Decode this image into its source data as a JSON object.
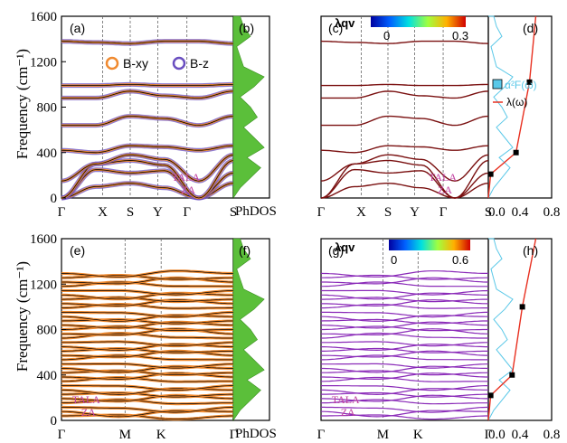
{
  "chart_data": [
    {
      "id": "a",
      "type": "line",
      "panel_label": "(a)",
      "ylabel": "Frequency (cm⁻¹)",
      "ylim": [
        0,
        1600
      ],
      "yticks": [
        "0",
        "400",
        "800",
        "1200",
        "1600"
      ],
      "kpath": [
        "Γ",
        "X",
        "S",
        "Y",
        "Γ",
        "S"
      ],
      "legend": [
        {
          "name": "B-xy",
          "color": "#f08a30"
        },
        {
          "name": "B-z",
          "color": "#6a4fc0"
        }
      ],
      "mode_labels": [
        "TA",
        "LA",
        "ZA"
      ],
      "bands_at_high_symmetry": [
        [
          0,
          100,
          130,
          90,
          0,
          130
        ],
        [
          0,
          250,
          220,
          240,
          0,
          220
        ],
        [
          0,
          300,
          330,
          290,
          0,
          330
        ],
        [
          150,
          300,
          380,
          340,
          150,
          380
        ],
        [
          420,
          400,
          460,
          450,
          420,
          460
        ],
        [
          640,
          640,
          720,
          700,
          640,
          720
        ],
        [
          880,
          880,
          940,
          900,
          880,
          940
        ],
        [
          990,
          990,
          1000,
          990,
          990,
          1000
        ],
        [
          1380,
          1370,
          1360,
          1380,
          1380,
          1360
        ]
      ]
    },
    {
      "id": "b",
      "type": "area",
      "panel_label": "(b)",
      "xlabel": "PhDOS",
      "phdos": [
        0,
        0.2,
        0.5,
        0.8,
        0.4,
        0.9,
        0.6,
        0.3,
        0.7,
        0.5,
        0.2,
        0.6,
        0.9,
        0.3,
        0.2,
        0.1,
        0.5,
        0.3,
        0.2
      ]
    },
    {
      "id": "c",
      "type": "line",
      "panel_label": "(c)",
      "ylim": [
        0,
        1600
      ],
      "kpath": [
        "Γ",
        "X",
        "S",
        "Y",
        "Γ",
        "S"
      ],
      "colorbar": {
        "label": "λqv",
        "min": "0",
        "max": "0.3"
      },
      "mode_labels": [
        "TA",
        "LA",
        "ZA"
      ]
    },
    {
      "id": "d",
      "type": "line",
      "panel_label": "(d)",
      "xlim": [
        0,
        0.8
      ],
      "xticks": [
        "0.0",
        "0.4",
        "0.8"
      ],
      "legend": [
        "α²F(ω)",
        "λ(ω)"
      ],
      "lambda_markers": [
        [
          0.03,
          210
        ],
        [
          0.35,
          400
        ],
        [
          0.52,
          1020
        ]
      ]
    },
    {
      "id": "e",
      "type": "line",
      "panel_label": "(e)",
      "ylabel": "Frequency (cm⁻¹)",
      "ylim": [
        0,
        1600
      ],
      "yticks": [
        "0",
        "400",
        "800",
        "1200",
        "1600"
      ],
      "kpath": [
        "Γ",
        "M",
        "K",
        "Γ"
      ],
      "mode_labels": [
        "TA",
        "LA",
        "ZA"
      ]
    },
    {
      "id": "f",
      "type": "area",
      "panel_label": "(f)",
      "xlabel": "PhDOS"
    },
    {
      "id": "g",
      "type": "line",
      "panel_label": "(g)",
      "ylim": [
        0,
        1600
      ],
      "kpath": [
        "Γ",
        "M",
        "K",
        "Γ"
      ],
      "colorbar": {
        "label": "λqv",
        "min": "0",
        "max": "0.6"
      },
      "mode_labels": [
        "TA",
        "LA",
        "ZA"
      ]
    },
    {
      "id": "h",
      "type": "line",
      "panel_label": "(h)",
      "xlim": [
        0,
        0.8
      ],
      "xticks": [
        "0.0",
        "0.4",
        "0.8"
      ],
      "lambda_markers": [
        [
          0.03,
          220
        ],
        [
          0.3,
          400
        ],
        [
          0.43,
          1000
        ]
      ]
    }
  ]
}
